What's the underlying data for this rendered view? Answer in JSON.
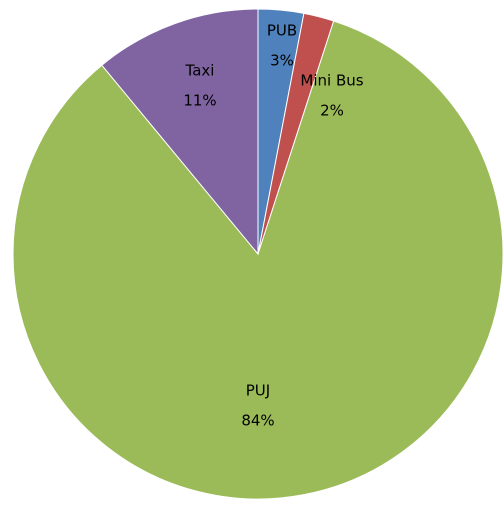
{
  "chart_data": {
    "type": "pie",
    "categories": [
      "PUB",
      "Mini Bus",
      "PUJ",
      "Taxi"
    ],
    "values": [
      3,
      2,
      84,
      11
    ],
    "value_labels": [
      "3%",
      "2%",
      "84%",
      "11%"
    ],
    "colors": [
      "#4f81bd",
      "#c0504d",
      "#9bbb59",
      "#8064a2"
    ]
  }
}
